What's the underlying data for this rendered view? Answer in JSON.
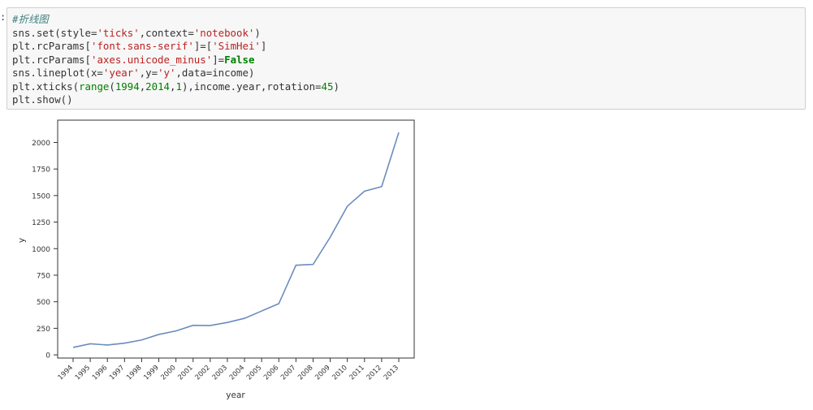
{
  "cell": {
    "prompt": ":",
    "lines": [
      [
        {
          "t": "#折线图",
          "c": "comment"
        }
      ],
      [
        {
          "t": "sns.set(style="
        },
        {
          "t": "'ticks'",
          "c": "string"
        },
        {
          "t": ",context="
        },
        {
          "t": "'notebook'",
          "c": "string"
        },
        {
          "t": ")"
        }
      ],
      [
        {
          "t": "plt.rcParams["
        },
        {
          "t": "'font.sans-serif'",
          "c": "string"
        },
        {
          "t": "]=["
        },
        {
          "t": "'SimHei'",
          "c": "string"
        },
        {
          "t": "]"
        }
      ],
      [
        {
          "t": "plt.rcParams["
        },
        {
          "t": "'axes.unicode_minus'",
          "c": "string"
        },
        {
          "t": "]="
        },
        {
          "t": "False",
          "c": "keyword"
        }
      ],
      [
        {
          "t": "sns.lineplot(x="
        },
        {
          "t": "'year'",
          "c": "string"
        },
        {
          "t": ",y="
        },
        {
          "t": "'y'",
          "c": "string"
        },
        {
          "t": ",data=income)"
        }
      ],
      [
        {
          "t": "plt.xticks("
        },
        {
          "t": "range",
          "c": "builtin"
        },
        {
          "t": "("
        },
        {
          "t": "1994",
          "c": "number"
        },
        {
          "t": ","
        },
        {
          "t": "2014",
          "c": "number"
        },
        {
          "t": ","
        },
        {
          "t": "1",
          "c": "number"
        },
        {
          "t": "),income.year,rotation="
        },
        {
          "t": "45",
          "c": "number"
        },
        {
          "t": ")"
        }
      ],
      [
        {
          "t": "plt.show()"
        }
      ]
    ]
  },
  "chart_data": {
    "type": "line",
    "title": "",
    "xlabel": "year",
    "ylabel": "y",
    "x": [
      1994,
      1995,
      1996,
      1997,
      1998,
      1999,
      2000,
      2001,
      2002,
      2003,
      2004,
      2005,
      2006,
      2007,
      2008,
      2009,
      2010,
      2011,
      2012,
      2013
    ],
    "series": [
      {
        "values": [
          70,
          104,
          93,
          110,
          140,
          192,
          225,
          278,
          276,
          305,
          344,
          413,
          482,
          844,
          852,
          1108,
          1400,
          1541,
          1584,
          2094
        ]
      }
    ],
    "xlim": [
      1993.1,
      2013.9
    ],
    "ylim": [
      -30,
      2210
    ],
    "yticks": [
      0,
      250,
      500,
      750,
      1000,
      1250,
      1500,
      1750,
      2000
    ],
    "xtick_rotation": 45,
    "grid": false,
    "line_color": "#6b8cbe"
  }
}
